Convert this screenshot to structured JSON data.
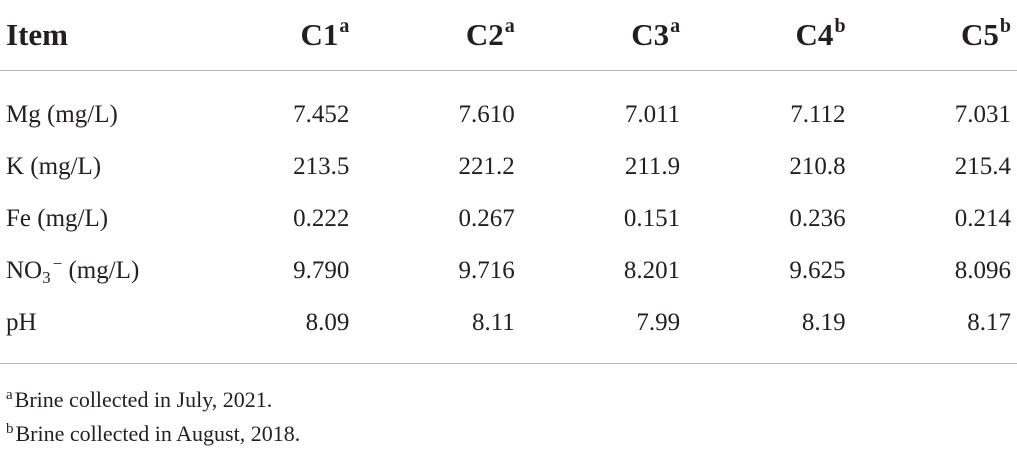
{
  "table": {
    "header": {
      "item": "Item",
      "columns": [
        {
          "label": "C1",
          "mark": "a"
        },
        {
          "label": "C2",
          "mark": "a"
        },
        {
          "label": "C3",
          "mark": "a"
        },
        {
          "label": "C4",
          "mark": "b"
        },
        {
          "label": "C5",
          "mark": "b"
        }
      ]
    },
    "rows": [
      {
        "label": "Mg (mg/L)",
        "values": [
          "7.452",
          "7.610",
          "7.011",
          "7.112",
          "7.031"
        ]
      },
      {
        "label": "K (mg/L)",
        "values": [
          "213.5",
          "221.2",
          "211.9",
          "210.8",
          "215.4"
        ]
      },
      {
        "label": "Fe (mg/L)",
        "values": [
          "0.222",
          "0.267",
          "0.151",
          "0.236",
          "0.214"
        ]
      },
      {
        "label_parts": {
          "base": "NO",
          "sub": "3",
          "sup": "−",
          "unit": " (mg/L)"
        },
        "values": [
          "9.790",
          "9.716",
          "8.201",
          "9.625",
          "8.096"
        ]
      },
      {
        "label": "pH",
        "values": [
          "8.09",
          "8.11",
          "7.99",
          "8.19",
          "8.17"
        ]
      }
    ]
  },
  "footnotes": [
    {
      "mark": "a",
      "text": "Brine collected in July, 2021."
    },
    {
      "mark": "b",
      "text": "Brine collected in August, 2018."
    }
  ]
}
